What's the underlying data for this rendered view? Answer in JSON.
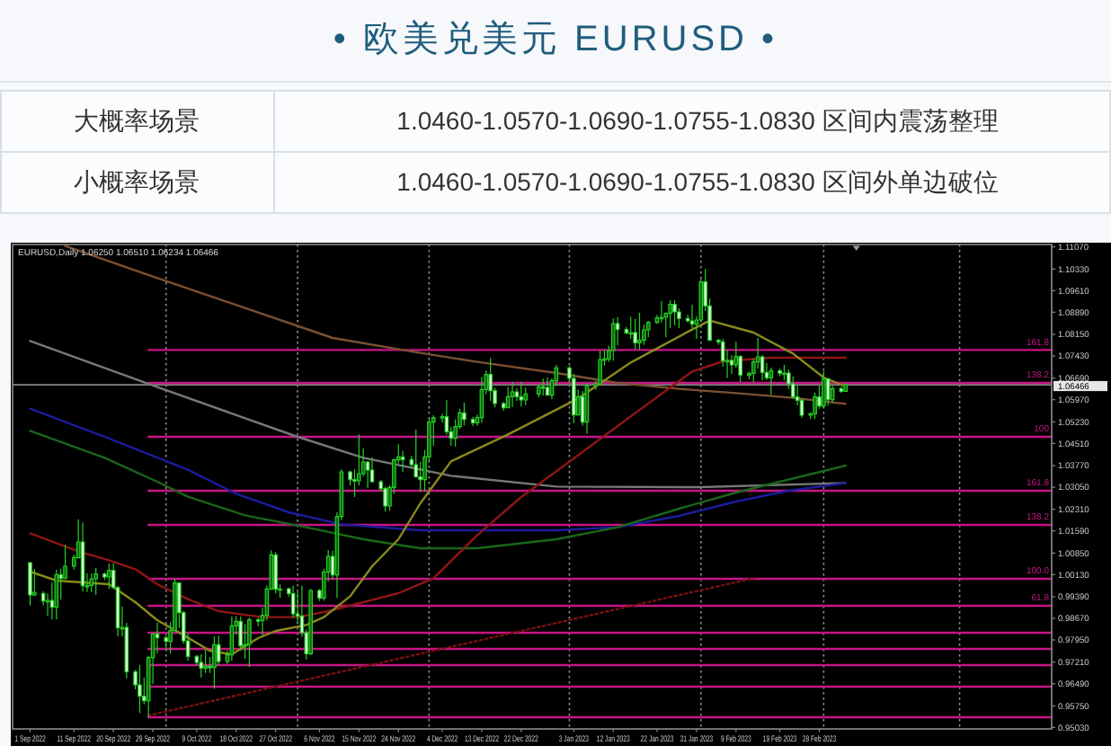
{
  "chart_data": {
    "type": "candlestick",
    "title": "• 欧美兑美元 EURUSD •",
    "annotations": [
      "大概率场景",
      "1.0460-1.0570-1.0690-1.0755-1.0830 区间内震荡整理",
      "小概率场景",
      "1.0460-1.0570-1.0690-1.0755-1.0830 区间外单边破位",
      "EURUSD,Daily 1.06250 1.06510 1.06234 1.06466"
    ],
    "x": [
      "2022-09-01",
      "2022-09-02",
      "2022-09-04",
      "2022-09-05",
      "2022-09-06",
      "2022-09-07",
      "2022-09-08",
      "2022-09-09",
      "2022-09-11",
      "2022-09-12",
      "2022-09-13",
      "2022-09-14",
      "2022-09-15",
      "2022-09-16",
      "2022-09-18",
      "2022-09-19",
      "2022-09-20",
      "2022-09-21",
      "2022-09-22",
      "2022-09-23",
      "2022-09-25",
      "2022-09-26",
      "2022-09-27",
      "2022-09-28",
      "2022-09-29",
      "2022-09-30",
      "2022-10-02",
      "2022-10-03",
      "2022-10-04",
      "2022-10-05",
      "2022-10-06",
      "2022-10-07",
      "2022-10-09",
      "2022-10-10",
      "2022-10-11",
      "2022-10-12",
      "2022-10-13",
      "2022-10-14",
      "2022-10-16",
      "2022-10-17",
      "2022-10-18",
      "2022-10-19",
      "2022-10-20",
      "2022-10-21",
      "2022-10-23",
      "2022-10-24",
      "2022-10-25",
      "2022-10-26",
      "2022-10-27",
      "2022-10-28",
      "2022-10-30",
      "2022-10-31",
      "2022-11-01",
      "2022-11-02",
      "2022-11-03",
      "2022-11-04",
      "2022-11-06",
      "2022-11-07",
      "2022-11-08",
      "2022-11-09",
      "2022-11-10",
      "2022-11-11",
      "2022-11-13",
      "2022-11-14",
      "2022-11-15",
      "2022-11-16",
      "2022-11-17",
      "2022-11-18",
      "2022-11-20",
      "2022-11-21",
      "2022-11-22",
      "2022-11-23",
      "2022-11-24",
      "2022-11-25",
      "2022-11-27",
      "2022-11-28",
      "2022-11-29",
      "2022-11-30",
      "2022-12-01",
      "2022-12-02",
      "2022-12-04",
      "2022-12-05",
      "2022-12-06",
      "2022-12-07",
      "2022-12-08",
      "2022-12-09",
      "2022-12-11",
      "2022-12-12",
      "2022-12-13",
      "2022-12-14",
      "2022-12-15",
      "2022-12-16",
      "2022-12-18",
      "2022-12-19",
      "2022-12-20",
      "2022-12-21",
      "2022-12-22",
      "2022-12-23",
      "2022-12-26",
      "2022-12-27",
      "2022-12-28",
      "2022-12-29",
      "2022-12-30",
      "2023-01-02",
      "2023-01-03",
      "2023-01-04",
      "2023-01-05",
      "2023-01-06",
      "2023-01-08",
      "2023-01-09",
      "2023-01-10",
      "2023-01-11",
      "2023-01-12",
      "2023-01-13",
      "2023-01-15",
      "2023-01-16",
      "2023-01-17",
      "2023-01-18",
      "2023-01-19",
      "2023-01-20",
      "2023-01-22",
      "2023-01-23",
      "2023-01-24",
      "2023-01-25",
      "2023-01-26",
      "2023-01-27",
      "2023-01-29",
      "2023-01-30",
      "2023-01-31",
      "2023-02-01",
      "2023-02-02",
      "2023-02-03",
      "2023-02-05",
      "2023-02-06",
      "2023-02-07",
      "2023-02-08",
      "2023-02-09",
      "2023-02-10",
      "2023-02-12",
      "2023-02-13",
      "2023-02-14",
      "2023-02-15",
      "2023-02-16",
      "2023-02-17",
      "2023-02-19",
      "2023-02-20",
      "2023-02-21",
      "2023-02-22",
      "2023-02-23",
      "2023-02-24",
      "2023-02-26",
      "2023-02-27",
      "2023-02-28",
      "2023-03-01",
      "2023-03-02",
      "2023-03-03",
      "2023-03-05",
      "2023-03-06"
    ],
    "ohlc": [
      [
        1.0053,
        1.0056,
        0.991,
        0.9945
      ],
      [
        0.9945,
        1.0033,
        0.9941,
        0.9954
      ],
      [
        0.995,
        0.9958,
        0.991,
        0.9925
      ],
      [
        0.9925,
        0.995,
        0.9876,
        0.9927
      ],
      [
        0.9927,
        0.9987,
        0.9864,
        0.9904
      ],
      [
        0.9904,
        1.0029,
        0.9864,
        1.0013
      ],
      [
        1.0013,
        1.0033,
        0.993,
        1.0
      ],
      [
        1.0,
        1.0113,
        0.9998,
        1.0041
      ],
      [
        1.0041,
        1.008,
        1.003,
        1.007
      ],
      [
        1.007,
        1.0198,
        1.0066,
        1.0122
      ],
      [
        1.0122,
        1.0187,
        0.9956,
        0.9976
      ],
      [
        0.9976,
        1.0018,
        0.9955,
        0.9977
      ],
      [
        0.9977,
        1.0017,
        0.9955,
        0.9999
      ],
      [
        0.9999,
        1.0036,
        0.9945,
        1.0015
      ],
      [
        1.0015,
        1.002,
        0.9995,
        1.0005
      ],
      [
        1.0005,
        1.005,
        0.9966,
        1.0027
      ],
      [
        1.0027,
        1.0051,
        0.9965,
        0.997
      ],
      [
        0.997,
        0.9976,
        0.9807,
        0.9836
      ],
      [
        0.9836,
        0.9907,
        0.9807,
        0.9837
      ],
      [
        0.9837,
        0.9852,
        0.9667,
        0.9689
      ],
      [
        0.9689,
        0.9695,
        0.963,
        0.9645
      ],
      [
        0.9645,
        0.9711,
        0.9551,
        0.9607
      ],
      [
        0.9607,
        0.967,
        0.958,
        0.9592
      ],
      [
        0.9592,
        0.9742,
        0.9536,
        0.9736
      ],
      [
        0.9736,
        0.9815,
        0.9648,
        0.9815
      ],
      [
        0.9815,
        0.9853,
        0.975,
        0.9802
      ],
      [
        0.9802,
        0.981,
        0.976,
        0.979
      ],
      [
        0.979,
        0.9854,
        0.975,
        0.9826
      ],
      [
        0.9826,
        0.9999,
        0.9824,
        0.9985
      ],
      [
        0.9985,
        0.9987,
        0.9835,
        0.9886
      ],
      [
        0.9886,
        0.9892,
        0.9782,
        0.9792
      ],
      [
        0.9792,
        0.9815,
        0.9726,
        0.974
      ],
      [
        0.974,
        0.9745,
        0.971,
        0.972
      ],
      [
        0.972,
        0.9748,
        0.967,
        0.9701
      ],
      [
        0.9701,
        0.9762,
        0.9685,
        0.9707
      ],
      [
        0.9707,
        0.9738,
        0.9685,
        0.9703
      ],
      [
        0.9703,
        0.9807,
        0.9632,
        0.9779
      ],
      [
        0.9779,
        0.9809,
        0.971,
        0.9723
      ],
      [
        0.9723,
        0.976,
        0.9715,
        0.9745
      ],
      [
        0.9745,
        0.9873,
        0.9725,
        0.9842
      ],
      [
        0.9842,
        0.9875,
        0.9812,
        0.9857
      ],
      [
        0.9857,
        0.9873,
        0.9759,
        0.9775
      ],
      [
        0.9775,
        0.9848,
        0.9732,
        0.978
      ],
      [
        0.978,
        0.987,
        0.9705,
        0.9862
      ],
      [
        0.9862,
        0.987,
        0.984,
        0.986
      ],
      [
        0.986,
        0.9903,
        0.9808,
        0.9877
      ],
      [
        0.9877,
        0.9977,
        0.986,
        0.9965
      ],
      [
        0.9965,
        1.0094,
        0.9962,
        1.0079
      ],
      [
        1.0079,
        1.0088,
        0.995,
        0.9964
      ],
      [
        0.9964,
        0.998,
        0.9935,
        0.9966
      ],
      [
        0.9966,
        0.997,
        0.994,
        0.995
      ],
      [
        0.995,
        0.9976,
        0.987,
        0.9882
      ],
      [
        0.9882,
        0.9954,
        0.9853,
        0.9875
      ],
      [
        0.9875,
        0.9976,
        0.9805,
        0.9819
      ],
      [
        0.9819,
        0.983,
        0.973,
        0.9749
      ],
      [
        0.9749,
        0.9965,
        0.9745,
        0.996
      ],
      [
        0.996,
        0.9965,
        0.9925,
        0.9935
      ],
      [
        0.9935,
        1.0033,
        0.9926,
        1.0022
      ],
      [
        1.0022,
        1.0096,
        0.999,
        1.0074
      ],
      [
        1.0074,
        1.0093,
        0.9997,
        1.0012
      ],
      [
        1.0012,
        1.0222,
        0.9935,
        1.0207
      ],
      [
        1.0207,
        1.0364,
        1.0194,
        1.0356
      ],
      [
        1.0356,
        1.036,
        1.031,
        1.033
      ],
      [
        1.033,
        1.0365,
        1.0272,
        1.0326
      ],
      [
        1.0326,
        1.0481,
        1.031,
        1.035
      ],
      [
        1.035,
        1.0434,
        1.034,
        1.0389
      ],
      [
        1.0389,
        1.0392,
        1.0301,
        1.0362
      ],
      [
        1.0362,
        1.0405,
        1.032,
        1.0323
      ],
      [
        1.0323,
        1.033,
        1.029,
        1.03
      ],
      [
        1.03,
        1.0307,
        1.0223,
        1.0242
      ],
      [
        1.0242,
        1.0312,
        1.0226,
        1.0304
      ],
      [
        1.0304,
        1.04,
        1.0283,
        1.0396
      ],
      [
        1.0396,
        1.0448,
        1.0384,
        1.0406
      ],
      [
        1.0406,
        1.0426,
        1.0355,
        1.0397
      ],
      [
        1.0397,
        1.041,
        1.037,
        1.038
      ],
      [
        1.038,
        1.0497,
        1.0338,
        1.0339
      ],
      [
        1.0339,
        1.0389,
        1.029,
        1.033
      ],
      [
        1.033,
        1.0429,
        1.029,
        1.0406
      ],
      [
        1.0406,
        1.0534,
        1.0392,
        1.0522
      ],
      [
        1.0522,
        1.0545,
        1.0443,
        1.0537
      ],
      [
        1.0537,
        1.055,
        1.052,
        1.054
      ],
      [
        1.054,
        1.0595,
        1.048,
        1.049
      ],
      [
        1.049,
        1.0506,
        1.0443,
        1.0468
      ],
      [
        1.0468,
        1.0531,
        1.044,
        1.0507
      ],
      [
        1.0507,
        1.0566,
        1.0499,
        1.0553
      ],
      [
        1.0553,
        1.0587,
        1.0511,
        1.0531
      ],
      [
        1.0531,
        1.054,
        1.051,
        1.052
      ],
      [
        1.052,
        1.0547,
        1.051,
        1.0537
      ],
      [
        1.0537,
        1.0673,
        1.052,
        1.0631
      ],
      [
        1.0631,
        1.0694,
        1.0615,
        1.0681
      ],
      [
        1.0681,
        1.0736,
        1.0592,
        1.0627
      ],
      [
        1.0627,
        1.0637,
        1.0571,
        1.0584
      ],
      [
        1.0584,
        1.059,
        1.056,
        1.057
      ],
      [
        1.057,
        1.0639,
        1.057,
        1.0607
      ],
      [
        1.0607,
        1.0656,
        1.0573,
        1.0623
      ],
      [
        1.0623,
        1.0636,
        1.0593,
        1.0607
      ],
      [
        1.0607,
        1.0657,
        1.0574,
        1.0596
      ],
      [
        1.0596,
        1.0637,
        1.0579,
        1.0616
      ],
      [
        1.0616,
        1.0644,
        1.0605,
        1.064
      ],
      [
        1.064,
        1.0667,
        1.061,
        1.0638
      ],
      [
        1.0638,
        1.0672,
        1.061,
        1.0612
      ],
      [
        1.0612,
        1.0668,
        1.0599,
        1.066
      ],
      [
        1.066,
        1.0713,
        1.0642,
        1.0703
      ],
      [
        1.0703,
        1.0709,
        1.0653,
        1.0668
      ],
      [
        1.0668,
        1.0683,
        1.0519,
        1.0546
      ],
      [
        1.0546,
        1.0631,
        1.0544,
        1.0607
      ],
      [
        1.0607,
        1.0626,
        1.051,
        1.0522
      ],
      [
        1.0522,
        1.0652,
        1.0483,
        1.0644
      ],
      [
        1.0644,
        1.066,
        1.063,
        1.065
      ],
      [
        1.065,
        1.076,
        1.0645,
        1.0731
      ],
      [
        1.0731,
        1.0763,
        1.0711,
        1.0733
      ],
      [
        1.0733,
        1.0777,
        1.0723,
        1.0761
      ],
      [
        1.0761,
        1.0868,
        1.0727,
        1.0851
      ],
      [
        1.0851,
        1.0873,
        1.0778,
        1.0831
      ],
      [
        1.0831,
        1.084,
        1.0815,
        1.082
      ],
      [
        1.082,
        1.0874,
        1.08,
        1.0821
      ],
      [
        1.0821,
        1.0867,
        1.0766,
        1.0787
      ],
      [
        1.0787,
        1.0887,
        1.0765,
        1.0795
      ],
      [
        1.0795,
        1.0847,
        1.078,
        1.083
      ],
      [
        1.083,
        1.086,
        1.0806,
        1.0855
      ],
      [
        1.0855,
        1.088,
        1.085,
        1.087
      ],
      [
        1.087,
        1.0927,
        1.0854,
        1.0872
      ],
      [
        1.0872,
        1.0888,
        1.0805,
        1.0885
      ],
      [
        1.0885,
        1.0929,
        1.0835,
        1.0915
      ],
      [
        1.0915,
        1.0929,
        1.0845,
        1.089
      ],
      [
        1.089,
        1.0902,
        1.0836,
        1.0868
      ],
      [
        1.0868,
        1.088,
        1.0855,
        1.086
      ],
      [
        1.086,
        1.0914,
        1.0835,
        1.0849
      ],
      [
        1.0849,
        1.0876,
        1.08,
        1.0863
      ],
      [
        1.0863,
        1.1,
        1.0859,
        1.099
      ],
      [
        1.099,
        1.1033,
        1.0893,
        1.091
      ],
      [
        1.091,
        1.0935,
        1.0793,
        1.0795
      ],
      [
        1.0795,
        1.08,
        1.078,
        1.079
      ],
      [
        1.079,
        1.08,
        1.0707,
        1.0727
      ],
      [
        1.0727,
        1.0762,
        1.0669,
        1.0728
      ],
      [
        1.0728,
        1.0746,
        1.0683,
        1.0713
      ],
      [
        1.0713,
        1.079,
        1.0704,
        1.0741
      ],
      [
        1.0741,
        1.0745,
        1.0656,
        1.0679
      ],
      [
        1.0679,
        1.069,
        1.0665,
        1.0685
      ],
      [
        1.0685,
        1.0733,
        1.0655,
        1.0723
      ],
      [
        1.0723,
        1.0804,
        1.07,
        1.074
      ],
      [
        1.074,
        1.0745,
        1.0661,
        1.0688
      ],
      [
        1.0688,
        1.072,
        1.0663,
        1.067
      ],
      [
        1.067,
        1.0704,
        1.0613,
        1.0694
      ],
      [
        1.0694,
        1.07,
        1.0675,
        1.0685
      ],
      [
        1.0685,
        1.0713,
        1.0661,
        1.0686
      ],
      [
        1.0686,
        1.0698,
        1.0633,
        1.065
      ],
      [
        1.065,
        1.0675,
        1.0599,
        1.0606
      ],
      [
        1.0606,
        1.0644,
        1.0577,
        1.0595
      ],
      [
        1.0595,
        1.0601,
        1.0536,
        1.0545
      ],
      [
        1.0545,
        1.0555,
        1.0533,
        1.055
      ],
      [
        1.055,
        1.0621,
        1.0533,
        1.0606
      ],
      [
        1.0606,
        1.0644,
        1.0567,
        1.0576
      ],
      [
        1.0576,
        1.0691,
        1.057,
        1.0667
      ],
      [
        1.0667,
        1.0669,
        1.0577,
        1.0597
      ],
      [
        1.0597,
        1.0643,
        1.0587,
        1.0634
      ],
      [
        1.0634,
        1.064,
        1.062,
        1.0625
      ],
      [
        1.0625,
        1.0651,
        1.06234,
        1.06466
      ]
    ],
    "color": "#24d024",
    "colors": [
      "#e0ffe0",
      "#0f6a0f",
      "#e0ffe0",
      "#0f6a0f",
      "#e0ffe0",
      "#0f6a0f",
      "#e0ffe0",
      "#0f6a0f",
      "#0f6a0f",
      "#0f6a0f",
      "#e0ffe0",
      "#0f6a0f",
      "#0f6a0f",
      "#0f6a0f",
      "#e0ffe0",
      "#0f6a0f",
      "#e0ffe0",
      "#e0ffe0",
      "#0f6a0f",
      "#e0ffe0",
      "#e0ffe0",
      "#e0ffe0",
      "#e0ffe0",
      "#0f6a0f",
      "#0f6a0f",
      "#e0ffe0",
      "#e0ffe0",
      "#0f6a0f",
      "#0f6a0f",
      "#e0ffe0",
      "#e0ffe0",
      "#e0ffe0",
      "#e0ffe0",
      "#e0ffe0",
      "#0f6a0f",
      "#e0ffe0",
      "#0f6a0f",
      "#e0ffe0",
      "#0f6a0f",
      "#0f6a0f",
      "#0f6a0f",
      "#e0ffe0",
      "#0f6a0f",
      "#0f6a0f",
      "#e0ffe0",
      "#0f6a0f",
      "#0f6a0f",
      "#0f6a0f",
      "#e0ffe0",
      "#0f6a0f",
      "#e0ffe0",
      "#e0ffe0",
      "#e0ffe0",
      "#e0ffe0",
      "#e0ffe0",
      "#0f6a0f",
      "#e0ffe0",
      "#0f6a0f",
      "#0f6a0f",
      "#e0ffe0",
      "#0f6a0f",
      "#0f6a0f",
      "#e0ffe0",
      "#e0ffe0",
      "#0f6a0f",
      "#0f6a0f",
      "#e0ffe0",
      "#e0ffe0",
      "#e0ffe0",
      "#e0ffe0",
      "#0f6a0f",
      "#0f6a0f",
      "#0f6a0f",
      "#e0ffe0",
      "#e0ffe0",
      "#e0ffe0",
      "#e0ffe0",
      "#0f6a0f",
      "#0f6a0f",
      "#0f6a0f",
      "#0f6a0f",
      "#e0ffe0",
      "#e0ffe0",
      "#0f6a0f",
      "#0f6a0f",
      "#e0ffe0",
      "#e0ffe0",
      "#0f6a0f",
      "#0f6a0f",
      "#0f6a0f",
      "#e0ffe0",
      "#e0ffe0",
      "#e0ffe0",
      "#0f6a0f",
      "#0f6a0f",
      "#e0ffe0",
      "#e0ffe0",
      "#0f6a0f",
      "#0f6a0f",
      "#e0ffe0",
      "#e0ffe0",
      "#0f6a0f",
      "#0f6a0f",
      "#e0ffe0",
      "#e0ffe0",
      "#0f6a0f",
      "#e0ffe0",
      "#0f6a0f",
      "#0f6a0f",
      "#0f6a0f",
      "#0f6a0f",
      "#0f6a0f",
      "#0f6a0f",
      "#e0ffe0",
      "#e0ffe0",
      "#0f6a0f",
      "#e0ffe0",
      "#0f6a0f",
      "#0f6a0f",
      "#0f6a0f",
      "#0f6a0f",
      "#0f6a0f",
      "#0f6a0f",
      "#0f6a0f",
      "#e0ffe0",
      "#e0ffe0",
      "#e0ffe0",
      "#e0ffe0",
      "#0f6a0f",
      "#0f6a0f",
      "#e0ffe0",
      "#e0ffe0",
      "#e0ffe0",
      "#e0ffe0",
      "#0f6a0f",
      "#e0ffe0",
      "#0f6a0f",
      "#e0ffe0",
      "#0f6a0f",
      "#0f6a0f",
      "#0f6a0f",
      "#e0ffe0",
      "#e0ffe0",
      "#0f6a0f",
      "#e0ffe0",
      "#0f6a0f",
      "#e0ffe0",
      "#e0ffe0",
      "#e0ffe0",
      "#e0ffe0",
      "#0f6a0f",
      "#0f6a0f",
      "#e0ffe0",
      "#0f6a0f",
      "#e0ffe0",
      "#0f6a0f",
      "#e0ffe0",
      "#0f6a0f"
    ],
    "xlim": [
      "2022-08-28",
      "2023-04-22"
    ],
    "xticks": [
      {
        "value": "2022-09-01",
        "label": "1 Sep 2022"
      },
      {
        "value": "2022-09-11",
        "label": "11 Sep 2022"
      },
      {
        "value": "2022-09-20",
        "label": "20 Sep 2022"
      },
      {
        "value": "2022-09-29",
        "label": "29 Sep 2022"
      },
      {
        "value": "2022-10-09",
        "label": "9 Oct 2022"
      },
      {
        "value": "2022-10-18",
        "label": "18 Oct 2022"
      },
      {
        "value": "2022-10-27",
        "label": "27 Oct 2022"
      },
      {
        "value": "2022-11-06",
        "label": "6 Nov 2022"
      },
      {
        "value": "2022-11-15",
        "label": "15 Nov 2022"
      },
      {
        "value": "2022-11-24",
        "label": "24 Nov 2022"
      },
      {
        "value": "2022-12-04",
        "label": "4 Dec 2022"
      },
      {
        "value": "2022-12-13",
        "label": "13 Dec 2022"
      },
      {
        "value": "2022-12-22",
        "label": "22 Dec 2022"
      },
      {
        "value": "2023-01-03",
        "label": "3 Jan 2023"
      },
      {
        "value": "2023-01-12",
        "label": "12 Jan 2023"
      },
      {
        "value": "2023-01-22",
        "label": "22 Jan 2023"
      },
      {
        "value": "2023-01-31",
        "label": "31 Jan 2023"
      },
      {
        "value": "2023-02-09",
        "label": "9 Feb 2023"
      },
      {
        "value": "2023-02-19",
        "label": "19 Feb 2023"
      },
      {
        "value": "2023-02-28",
        "label": "28 Feb 2023"
      }
    ],
    "ylim": [
      0.9498,
      1.1115
    ],
    "yticks": [
      {
        "value": 1.1107,
        "label": "1.11070"
      },
      {
        "value": 1.1033,
        "label": "1.10330"
      },
      {
        "value": 1.0961,
        "label": "1.09610"
      },
      {
        "value": 1.0889,
        "label": "1.08890"
      },
      {
        "value": 1.0815,
        "label": "1.08150"
      },
      {
        "value": 1.0743,
        "label": "1.07430"
      },
      {
        "value": 1.0669,
        "label": "1.06690"
      },
      {
        "value": 1.0597,
        "label": "1.05970"
      },
      {
        "value": 1.0523,
        "label": "1.05230"
      },
      {
        "value": 1.0451,
        "label": "1.04510"
      },
      {
        "value": 1.0377,
        "label": "1.03770"
      },
      {
        "value": 1.0305,
        "label": "1.03050"
      },
      {
        "value": 1.0231,
        "label": "1.02310"
      },
      {
        "value": 1.0159,
        "label": "1.01590"
      },
      {
        "value": 1.0085,
        "label": "1.00850"
      },
      {
        "value": 1.0013,
        "label": "1.00130"
      },
      {
        "value": 0.9939,
        "label": "0.99390"
      },
      {
        "value": 0.9867,
        "label": "0.98670"
      },
      {
        "value": 0.9795,
        "label": "0.97950"
      },
      {
        "value": 0.9721,
        "label": "0.97210"
      },
      {
        "value": 0.9649,
        "label": "0.96490"
      },
      {
        "value": 0.9575,
        "label": "0.95750"
      },
      {
        "value": 0.9503,
        "label": "0.95030"
      }
    ],
    "series": [
      {
        "type": "line",
        "color": "#c71585",
        "name": "161.8",
        "x": [
          "2022-09-28",
          "2023-04-22"
        ],
        "values": [
          1.0763,
          1.0763
        ]
      },
      {
        "type": "line",
        "color": "#c71585",
        "name": "138.2",
        "x": [
          "2022-09-28",
          "2023-04-22"
        ],
        "values": [
          1.0653,
          1.0653
        ]
      },
      {
        "type": "line",
        "color": "#c71585",
        "name": "100",
        "x": [
          "2022-09-28",
          "2023-04-22"
        ],
        "values": [
          1.0473,
          1.0473
        ]
      },
      {
        "type": "line",
        "color": "#c71585",
        "name": "161.8",
        "x": [
          "2022-09-28",
          "2023-04-22"
        ],
        "values": [
          1.0293,
          1.0293
        ]
      },
      {
        "type": "line",
        "color": "#c71585",
        "name": "138.2",
        "x": [
          "2022-09-28",
          "2023-04-22"
        ],
        "values": [
          1.0179,
          1.0179
        ]
      },
      {
        "type": "line",
        "color": "#c71585",
        "name": "100.0",
        "x": [
          "2022-09-28",
          "2023-04-22"
        ],
        "values": [
          0.9999,
          0.9999
        ]
      },
      {
        "type": "line",
        "color": "#c71585",
        "name": "61.8",
        "x": [
          "2022-09-28",
          "2023-04-22"
        ],
        "values": [
          0.9909,
          0.9909
        ]
      },
      {
        "type": "line",
        "color": "#c71585",
        "x": [
          "2022-09-28",
          "2023-04-22"
        ],
        "values": [
          0.9819,
          0.9819
        ]
      },
      {
        "type": "line",
        "color": "#c71585",
        "x": [
          "2022-09-28",
          "2023-04-22"
        ],
        "values": [
          0.9765,
          0.9765
        ]
      },
      {
        "type": "line",
        "color": "#c71585",
        "x": [
          "2022-09-28",
          "2023-04-22"
        ],
        "values": [
          0.9711,
          0.9711
        ]
      },
      {
        "type": "line",
        "color": "#c71585",
        "x": [
          "2022-09-28",
          "2023-04-22"
        ],
        "values": [
          0.9639,
          0.9639
        ]
      },
      {
        "type": "line",
        "color": "#c71585",
        "x": [
          "2022-09-28",
          "2023-04-22"
        ],
        "values": [
          0.9537,
          0.9537
        ]
      },
      {
        "type": "line",
        "color": "#7c5030",
        "x": [
          "2022-09-09",
          "2022-09-30",
          "2022-10-20",
          "2022-11-09",
          "2022-11-29",
          "2022-12-12",
          "2022-12-30",
          "2023-01-13",
          "2023-01-27",
          "2023-02-09",
          "2023-02-22",
          "2023-03-06"
        ],
        "values": [
          1.111,
          1.1003,
          1.0903,
          1.0803,
          1.0753,
          1.0723,
          1.0686,
          1.0653,
          1.0633,
          1.0619,
          1.0603,
          1.0583
        ]
      },
      {
        "type": "line",
        "color": "#787878",
        "x": [
          "2022-09-01",
          "2022-09-30",
          "2022-11-01",
          "2022-11-16",
          "2022-12-06",
          "2022-12-30",
          "2023-02-01",
          "2023-03-06"
        ],
        "values": [
          1.0793,
          1.0639,
          1.0473,
          1.0403,
          1.0343,
          1.0307,
          1.0305,
          1.0319
        ]
      },
      {
        "type": "line",
        "color": "#1c1ca0",
        "x": [
          "2022-09-01",
          "2022-09-18",
          "2022-10-07",
          "2022-10-18",
          "2022-10-30",
          "2022-11-11",
          "2022-11-29",
          "2022-12-30",
          "2023-01-13",
          "2023-01-27",
          "2023-02-09",
          "2023-02-21",
          "2023-03-06"
        ],
        "values": [
          1.0567,
          1.0473,
          1.0363,
          1.0283,
          1.0221,
          1.0181,
          1.0161,
          1.0161,
          1.0171,
          1.0209,
          1.0257,
          1.0293,
          1.0319
        ]
      },
      {
        "type": "line",
        "color": "#1a661a",
        "x": [
          "2022-09-01",
          "2022-09-18",
          "2022-09-30",
          "2022-10-07",
          "2022-10-20",
          "2022-11-03",
          "2022-11-16",
          "2022-11-29",
          "2022-12-12",
          "2022-12-30",
          "2023-01-13",
          "2023-01-27",
          "2023-02-09",
          "2023-02-19",
          "2023-03-06"
        ],
        "values": [
          1.0493,
          1.0403,
          1.0323,
          1.0273,
          1.0211,
          1.0171,
          1.0131,
          1.0101,
          1.0101,
          1.0131,
          1.0171,
          1.0233,
          1.0287,
          1.0323,
          1.0377
        ]
      },
      {
        "type": "line",
        "color": "#7a1010",
        "line_style": "dotted",
        "x": [
          "2022-09-28",
          "2023-02-13"
        ],
        "values": [
          0.9543,
          1.0001
        ]
      },
      {
        "type": "line",
        "color": "#8e1616",
        "x": [
          "2022-09-01",
          "2022-09-12",
          "2022-09-19",
          "2022-09-25",
          "2022-09-30",
          "2022-10-07",
          "2022-10-14",
          "2022-10-24",
          "2022-11-01",
          "2022-11-08",
          "2022-11-16",
          "2022-11-24",
          "2022-12-02",
          "2022-12-12",
          "2022-12-22",
          "2022-12-29",
          "2023-01-16",
          "2023-01-30",
          "2023-02-06",
          "2023-02-17",
          "2023-03-06"
        ],
        "values": [
          1.0151,
          1.0091,
          1.0061,
          1.0031,
          0.9981,
          0.9931,
          0.9891,
          0.9871,
          0.9871,
          0.9891,
          0.9921,
          0.9951,
          1.0001,
          1.0145,
          1.0272,
          1.0347,
          1.0541,
          1.0691,
          1.0725,
          1.0737,
          1.0737
        ]
      },
      {
        "type": "line",
        "color": "#8a8a1c",
        "x": [
          "2022-09-01",
          "2022-09-07",
          "2022-09-19",
          "2022-09-25",
          "2022-09-30",
          "2022-10-06",
          "2022-10-12",
          "2022-10-17",
          "2022-10-23",
          "2022-10-27",
          "2022-11-03",
          "2022-11-07",
          "2022-11-13",
          "2022-11-18",
          "2022-11-24",
          "2022-11-29",
          "2022-12-06",
          "2022-12-19",
          "2023-01-04",
          "2023-01-16",
          "2023-01-30",
          "2023-02-03",
          "2023-02-13",
          "2023-02-22",
          "2023-03-01",
          "2023-03-06"
        ],
        "values": [
          1.0023,
          0.9993,
          0.9981,
          0.9921,
          0.9861,
          0.9811,
          0.9759,
          0.9747,
          0.9801,
          0.9825,
          0.9845,
          0.9871,
          0.9941,
          1.0041,
          1.0131,
          1.0251,
          1.0391,
          1.0481,
          1.0601,
          1.0721,
          1.0831,
          1.0861,
          1.0821,
          1.0751,
          1.0671,
          1.0641
        ]
      }
    ],
    "ref_lines": [
      {
        "axis": "x",
        "value": "2022-10-02",
        "color": "#8c8c8c",
        "line_style": "dotted"
      },
      {
        "axis": "x",
        "value": "2022-11-01",
        "color": "#8c8c8c",
        "line_style": "dotted"
      },
      {
        "axis": "x",
        "value": "2022-12-01",
        "color": "#8c8c8c",
        "line_style": "dotted"
      },
      {
        "axis": "x",
        "value": "2023-01-02",
        "color": "#8c8c8c",
        "line_style": "dotted"
      },
      {
        "axis": "x",
        "value": "2023-02-01",
        "color": "#8c8c8c",
        "line_style": "dotted"
      },
      {
        "axis": "x",
        "value": "2023-03-01",
        "color": "#8c8c8c",
        "line_style": "dotted"
      },
      {
        "axis": "x",
        "value": "2023-04-01",
        "color": "#8c8c8c",
        "line_style": "dotted"
      },
      {
        "axis": "y",
        "value": 1.06466,
        "label": "1.06466",
        "color": "#8a8a8a",
        "line_style": "solid"
      }
    ]
  }
}
